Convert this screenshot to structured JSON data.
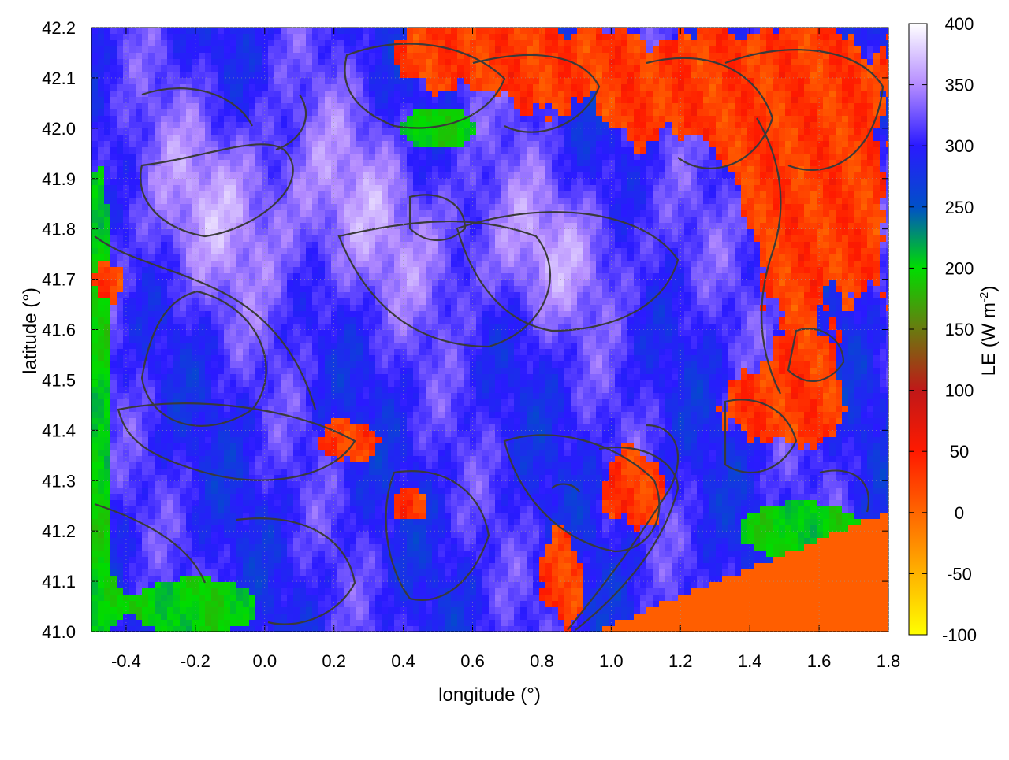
{
  "chart_data": {
    "type": "heatmap",
    "xlabel": "longitude (°)",
    "ylabel": "latitude (°)",
    "xlim": [
      -0.5,
      1.8
    ],
    "ylim": [
      41.0,
      42.2
    ],
    "xticks": [
      "-0.4",
      "-0.2",
      "0.0",
      "0.2",
      "0.4",
      "0.6",
      "0.8",
      "1.0",
      "1.2",
      "1.4",
      "1.6",
      "1.8"
    ],
    "xtick_values": [
      -0.4,
      -0.2,
      0.0,
      0.2,
      0.4,
      0.6,
      0.8,
      1.0,
      1.2,
      1.4,
      1.6,
      1.8
    ],
    "yticks": [
      "41.0",
      "41.1",
      "41.2",
      "41.3",
      "41.4",
      "41.5",
      "41.6",
      "41.7",
      "41.8",
      "41.9",
      "42.0",
      "42.1",
      "42.2"
    ],
    "ytick_values": [
      41.0,
      41.1,
      41.2,
      41.3,
      41.4,
      41.5,
      41.6,
      41.7,
      41.8,
      41.9,
      42.0,
      42.1,
      42.2
    ],
    "colorbar": {
      "label_main": "LE (W m",
      "label_sup": "-2",
      "label_end": ")",
      "range": [
        -100,
        400
      ],
      "ticks": [
        "400",
        "350",
        "300",
        "250",
        "200",
        "150",
        "100",
        "50",
        "0",
        "-50",
        "-100"
      ],
      "tick_values": [
        400,
        350,
        300,
        250,
        200,
        150,
        100,
        50,
        0,
        -50,
        -100
      ],
      "stops": [
        {
          "value": -100,
          "color": "#ffff00"
        },
        {
          "value": 0,
          "color": "#ff6600"
        },
        {
          "value": 50,
          "color": "#ff1a00"
        },
        {
          "value": 100,
          "color": "#c01818"
        },
        {
          "value": 150,
          "color": "#6a7a10"
        },
        {
          "value": 200,
          "color": "#00dd00"
        },
        {
          "value": 250,
          "color": "#0050c8"
        },
        {
          "value": 300,
          "color": "#2a1aff"
        },
        {
          "value": 350,
          "color": "#b48cff"
        },
        {
          "value": 400,
          "color": "#ffffff"
        }
      ]
    },
    "contour_color": "#3a3a3a",
    "grid": true
  }
}
